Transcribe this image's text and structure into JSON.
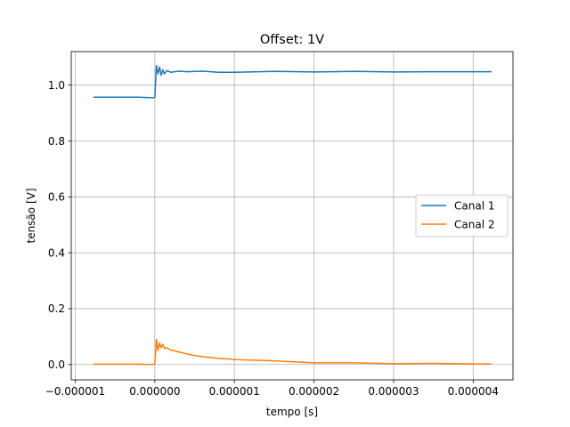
{
  "chart_data": {
    "type": "line",
    "title": "Offset: 1V",
    "xlabel": "tempo [s]",
    "ylabel": "tensão [V]",
    "xlim": [
      -1.05e-06,
      4.5e-06
    ],
    "ylim": [
      -0.055,
      1.12
    ],
    "xticks": [
      -1e-06,
      0.0,
      1e-06,
      2e-06,
      3e-06,
      4e-06
    ],
    "xtick_labels": [
      "−0.000001",
      "0.000000",
      "0.000001",
      "0.000002",
      "0.000003",
      "0.000004"
    ],
    "yticks": [
      0.0,
      0.2,
      0.4,
      0.6,
      0.8,
      1.0
    ],
    "ytick_labels": [
      "0.0",
      "0.2",
      "0.4",
      "0.6",
      "0.8",
      "1.0"
    ],
    "grid": true,
    "legend_position": "center-right",
    "series": [
      {
        "name": "Canal 1",
        "color": "#1f77b4",
        "x": [
          -7.7e-07,
          -5e-07,
          -2e-07,
          -3e-08,
          0.0,
          2e-08,
          4e-08,
          6e-08,
          8e-08,
          1e-07,
          1.2e-07,
          1.5e-07,
          2e-07,
          3e-07,
          4e-07,
          6e-07,
          8e-07,
          1e-06,
          1.5e-06,
          2e-06,
          2.5e-06,
          3e-06,
          3.5e-06,
          4e-06,
          4.23e-06
        ],
        "y": [
          0.957,
          0.957,
          0.957,
          0.955,
          0.956,
          1.07,
          1.04,
          1.065,
          1.035,
          1.055,
          1.04,
          1.052,
          1.046,
          1.05,
          1.048,
          1.05,
          1.046,
          1.046,
          1.049,
          1.047,
          1.049,
          1.047,
          1.048,
          1.048,
          1.048
        ]
      },
      {
        "name": "Canal 2",
        "color": "#ff7f0e",
        "x": [
          -7.7e-07,
          -5e-07,
          -2e-07,
          -3e-08,
          0.0,
          2e-08,
          4e-08,
          6e-08,
          8e-08,
          1e-07,
          1.2e-07,
          1.5e-07,
          2e-07,
          3e-07,
          4e-07,
          5e-07,
          6e-07,
          8e-07,
          1e-06,
          1.2e-06,
          1.5e-06,
          2e-06,
          2.5e-06,
          3e-06,
          3.5e-06,
          4e-06,
          4.23e-06
        ],
        "y": [
          0.001,
          0.001,
          0.001,
          0.0,
          0.002,
          0.09,
          0.05,
          0.078,
          0.06,
          0.072,
          0.058,
          0.06,
          0.052,
          0.045,
          0.038,
          0.032,
          0.028,
          0.022,
          0.018,
          0.016,
          0.013,
          0.006,
          0.006,
          0.003,
          0.004,
          0.002,
          0.002
        ]
      }
    ]
  }
}
